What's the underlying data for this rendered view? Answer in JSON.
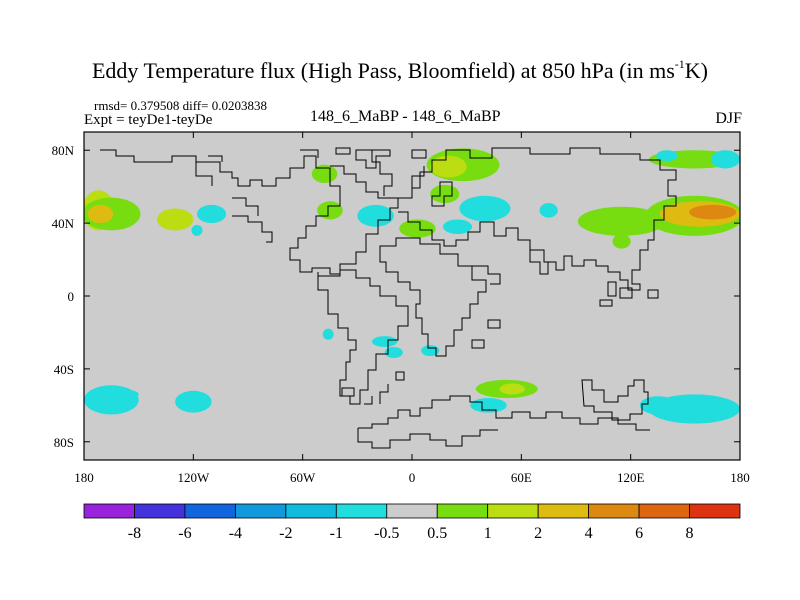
{
  "title": {
    "main": "Eddy Temperature flux (High Pass, Bloomfield) at 850 hPa (in ms",
    "superscript": "-1",
    "tail": "K)"
  },
  "subtitle": {
    "stats": "rmsd= 0.379508 diff= 0.0203838",
    "expt": "Expt = teyDe1-teyDe",
    "center": "148_6_MaBP - 148_6_MaBP",
    "season": "DJF"
  },
  "chart_data": {
    "type": "heatmap",
    "projection": "cylindrical-equidistant",
    "xlim": [
      -180,
      180
    ],
    "ylim": [
      -90,
      90
    ],
    "x_ticks": [
      {
        "value": -180,
        "label": "180"
      },
      {
        "value": -120,
        "label": "120W"
      },
      {
        "value": -60,
        "label": "60W"
      },
      {
        "value": 0,
        "label": "0"
      },
      {
        "value": 60,
        "label": "60E"
      },
      {
        "value": 120,
        "label": "120E"
      },
      {
        "value": 180,
        "label": "180"
      }
    ],
    "y_ticks": [
      {
        "value": 80,
        "label": "80N"
      },
      {
        "value": 40,
        "label": "40N"
      },
      {
        "value": 0,
        "label": "0"
      },
      {
        "value": -40,
        "label": "40S"
      },
      {
        "value": -80,
        "label": "80S"
      }
    ],
    "background_color": "#cccccc",
    "contour_levels": [
      "-8",
      "-6",
      "-4",
      "-2",
      "-1",
      "-0.5",
      "0.5",
      "1",
      "2",
      "4",
      "6",
      "8"
    ],
    "colorbar_colors": [
      "#9922dd",
      "#4433dd",
      "#1166dd",
      "#1199dd",
      "#11bbdd",
      "#22dddd",
      "#cccccc",
      "#77dd11",
      "#bbdd11",
      "#ddbb11",
      "#dd8811",
      "#dd6611",
      "#dd3311"
    ],
    "regions": [
      {
        "lon": -172,
        "lat": 47,
        "rlon": 9,
        "rlat": 11,
        "level": 1
      },
      {
        "lon": -165,
        "lat": 45,
        "rlon": 16,
        "rlat": 9,
        "level": 0.8
      },
      {
        "lon": -171,
        "lat": 45,
        "rlon": 7,
        "rlat": 5,
        "level": 3
      },
      {
        "lon": -130,
        "lat": 42,
        "rlon": 10,
        "rlat": 6,
        "level": 1
      },
      {
        "lon": -110,
        "lat": 45,
        "rlon": 8,
        "rlat": 5,
        "level": -0.7
      },
      {
        "lon": -118,
        "lat": 36,
        "rlon": 3,
        "rlat": 3,
        "level": -0.7
      },
      {
        "lon": -48,
        "lat": 67,
        "rlon": 7,
        "rlat": 5,
        "level": 0.8
      },
      {
        "lon": -45,
        "lat": 47,
        "rlon": 7,
        "rlat": 5,
        "level": 0.7
      },
      {
        "lon": -20,
        "lat": 44,
        "rlon": 10,
        "rlat": 6,
        "level": -0.7
      },
      {
        "lon": 28,
        "lat": 72,
        "rlon": 20,
        "rlat": 9,
        "level": 0.8
      },
      {
        "lon": 20,
        "lat": 71,
        "rlon": 10,
        "rlat": 6,
        "level": 1.5
      },
      {
        "lon": 18,
        "lat": 56,
        "rlon": 8,
        "rlat": 5,
        "level": 0.8
      },
      {
        "lon": 3,
        "lat": 37,
        "rlon": 10,
        "rlat": 5,
        "level": 0.8
      },
      {
        "lon": 40,
        "lat": 48,
        "rlon": 14,
        "rlat": 7,
        "level": -0.7
      },
      {
        "lon": 25,
        "lat": 38,
        "rlon": 8,
        "rlat": 4,
        "level": -0.7
      },
      {
        "lon": 75,
        "lat": 47,
        "rlon": 5,
        "rlat": 4,
        "level": -0.7
      },
      {
        "lon": 115,
        "lat": 41,
        "rlon": 24,
        "rlat": 8,
        "level": 0.8
      },
      {
        "lon": 155,
        "lat": 44,
        "rlon": 27,
        "rlat": 11,
        "level": 0.9
      },
      {
        "lon": 158,
        "lat": 45,
        "rlon": 22,
        "rlat": 7,
        "level": 2.5
      },
      {
        "lon": 165,
        "lat": 46,
        "rlon": 13,
        "rlat": 4,
        "level": 4.5
      },
      {
        "lon": 115,
        "lat": 30,
        "rlon": 5,
        "rlat": 4,
        "level": 0.8
      },
      {
        "lon": 155,
        "lat": 75,
        "rlon": 25,
        "rlat": 5,
        "level": 0.8
      },
      {
        "lon": 140,
        "lat": 77,
        "rlon": 6,
        "rlat": 3,
        "level": -0.7
      },
      {
        "lon": 172,
        "lat": 75,
        "rlon": 8,
        "rlat": 5,
        "level": -0.7
      },
      {
        "lon": -165,
        "lat": -57,
        "rlon": 15,
        "rlat": 8,
        "level": -0.7
      },
      {
        "lon": -120,
        "lat": -58,
        "rlon": 10,
        "rlat": 6,
        "level": -0.7
      },
      {
        "lon": -160,
        "lat": -54,
        "rlon": 10,
        "rlat": 3,
        "level": -0.6
      },
      {
        "lon": 155,
        "lat": -62,
        "rlon": 25,
        "rlat": 8,
        "level": -0.7
      },
      {
        "lon": 135,
        "lat": -60,
        "rlon": 10,
        "rlat": 5,
        "level": -0.7
      },
      {
        "lon": 52,
        "lat": -51,
        "rlon": 17,
        "rlat": 5,
        "level": 0.8
      },
      {
        "lon": 55,
        "lat": -51,
        "rlon": 7,
        "rlat": 3,
        "level": 1.5
      },
      {
        "lon": 42,
        "lat": -60,
        "rlon": 10,
        "rlat": 4,
        "level": -0.7
      },
      {
        "lon": -15,
        "lat": -25,
        "rlon": 7,
        "rlat": 3,
        "level": -0.7
      },
      {
        "lon": -10,
        "lat": -31,
        "rlon": 5,
        "rlat": 3,
        "level": -0.7
      },
      {
        "lon": 10,
        "lat": -30,
        "rlon": 5,
        "rlat": 3,
        "level": -0.7
      },
      {
        "lon": -46,
        "lat": -21,
        "rlon": 3,
        "rlat": 3,
        "level": -0.7
      }
    ]
  }
}
